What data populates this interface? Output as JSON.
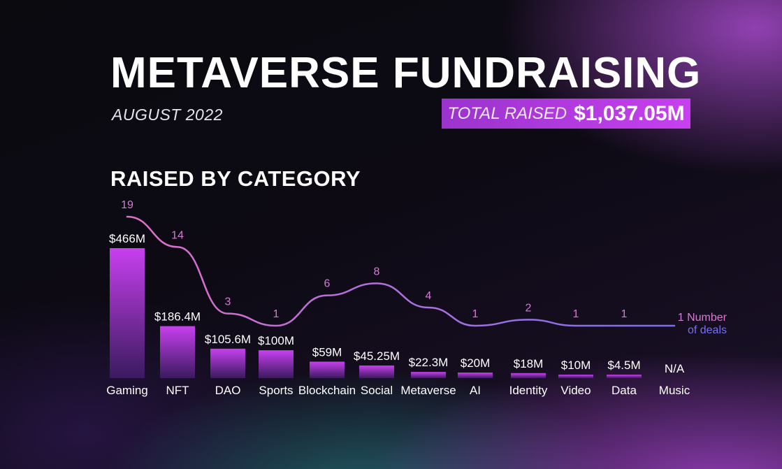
{
  "header": {
    "title": "METAVERSE FUNDRAISING",
    "date": "AUGUST 2022",
    "total_label": "TOTAL RAISED",
    "total_value": "$1,037.05M",
    "section_title": "RAISED BY CATEGORY"
  },
  "colors": {
    "bar_top": "#c740ef",
    "bar_bottom": "#3a1a5e",
    "line_start": "#e070c8",
    "line_end": "#7a6ef0",
    "deal_label": "#d67ad6",
    "total_box": "#9a34cc"
  },
  "chart_data": {
    "type": "bar",
    "title": "RAISED BY CATEGORY",
    "categories": [
      "Gaming",
      "NFT",
      "DAO",
      "Sports",
      "Blockchain",
      "Social",
      "Metaverse",
      "AI",
      "Identity",
      "Video",
      "Data",
      "Music"
    ],
    "series": [
      {
        "values": [
          466,
          186.4,
          105.6,
          100,
          59,
          45.25,
          22.3,
          20,
          18,
          10,
          4.5,
          null
        ],
        "unit": "$M",
        "data_labels": [
          "$466M",
          "$186.4M",
          "$105.6M",
          "$100M",
          "$59M",
          "$45.25M",
          "$22.3M",
          "$20M",
          "$18M",
          "$10M",
          "$4.5M",
          "N/A"
        ]
      },
      {
        "name": "Number of deals",
        "type": "line",
        "values": [
          19,
          14,
          3,
          1,
          6,
          8,
          4,
          1,
          2,
          1,
          1,
          1
        ],
        "legend_label": [
          "1 Number",
          "of deals"
        ]
      }
    ]
  }
}
